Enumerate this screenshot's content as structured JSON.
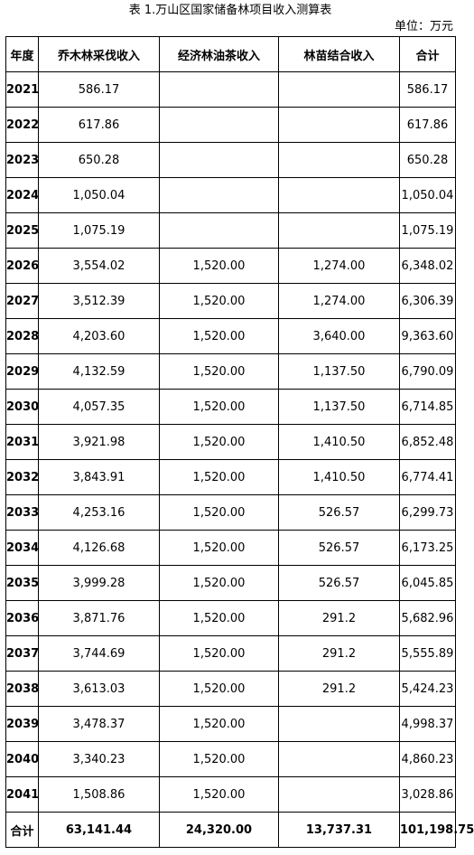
{
  "title": "表 1.万山区国家储备林项目收入测算表",
  "unit": "单位：万元",
  "columns": [
    "年度",
    "乔木林采伐收入",
    "经济林油茶收入",
    "林苗结合收入",
    "合计"
  ],
  "rows": [
    {
      "year": "2021",
      "timber": "586.17",
      "oil_tea": "",
      "seedling": "",
      "total": "586.17"
    },
    {
      "year": "2022",
      "timber": "617.86",
      "oil_tea": "",
      "seedling": "",
      "total": "617.86"
    },
    {
      "year": "2023",
      "timber": "650.28",
      "oil_tea": "",
      "seedling": "",
      "total": "650.28"
    },
    {
      "year": "2024",
      "timber": "1,050.04",
      "oil_tea": "",
      "seedling": "",
      "total": "1,050.04"
    },
    {
      "year": "2025",
      "timber": "1,075.19",
      "oil_tea": "",
      "seedling": "",
      "total": "1,075.19"
    },
    {
      "year": "2026",
      "timber": "3,554.02",
      "oil_tea": "1,520.00",
      "seedling": "1,274.00",
      "total": "6,348.02"
    },
    {
      "year": "2027",
      "timber": "3,512.39",
      "oil_tea": "1,520.00",
      "seedling": "1,274.00",
      "total": "6,306.39"
    },
    {
      "year": "2028",
      "timber": "4,203.60",
      "oil_tea": "1,520.00",
      "seedling": "3,640.00",
      "total": "9,363.60"
    },
    {
      "year": "2029",
      "timber": "4,132.59",
      "oil_tea": "1,520.00",
      "seedling": "1,137.50",
      "total": "6,790.09"
    },
    {
      "year": "2030",
      "timber": "4,057.35",
      "oil_tea": "1,520.00",
      "seedling": "1,137.50",
      "total": "6,714.85"
    },
    {
      "year": "2031",
      "timber": "3,921.98",
      "oil_tea": "1,520.00",
      "seedling": "1,410.50",
      "total": "6,852.48"
    },
    {
      "year": "2032",
      "timber": "3,843.91",
      "oil_tea": "1,520.00",
      "seedling": "1,410.50",
      "total": "6,774.41"
    },
    {
      "year": "2033",
      "timber": "4,253.16",
      "oil_tea": "1,520.00",
      "seedling": "526.57",
      "total": "6,299.73"
    },
    {
      "year": "2034",
      "timber": "4,126.68",
      "oil_tea": "1,520.00",
      "seedling": "526.57",
      "total": "6,173.25"
    },
    {
      "year": "2035",
      "timber": "3,999.28",
      "oil_tea": "1,520.00",
      "seedling": "526.57",
      "total": "6,045.85"
    },
    {
      "year": "2036",
      "timber": "3,871.76",
      "oil_tea": "1,520.00",
      "seedling": "291.2",
      "total": "5,682.96"
    },
    {
      "year": "2037",
      "timber": "3,744.69",
      "oil_tea": "1,520.00",
      "seedling": "291.2",
      "total": "5,555.89"
    },
    {
      "year": "2038",
      "timber": "3,613.03",
      "oil_tea": "1,520.00",
      "seedling": "291.2",
      "total": "5,424.23"
    },
    {
      "year": "2039",
      "timber": "3,478.37",
      "oil_tea": "1,520.00",
      "seedling": "",
      "total": "4,998.37"
    },
    {
      "year": "2040",
      "timber": "3,340.23",
      "oil_tea": "1,520.00",
      "seedling": "",
      "total": "4,860.23"
    },
    {
      "year": "2041",
      "timber": "1,508.86",
      "oil_tea": "1,520.00",
      "seedling": "",
      "total": "3,028.86"
    }
  ],
  "totals": {
    "label": "合计",
    "timber": "63,141.44",
    "oil_tea": "24,320.00",
    "seedling": "13,737.31",
    "total": "101,198.75"
  }
}
